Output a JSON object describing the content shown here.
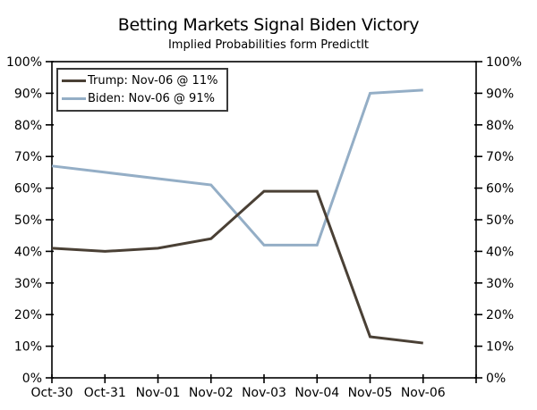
{
  "title": "Betting Markets Signal Biden Victory",
  "subtitle": "Implied Probabilities form PredictIt",
  "colors": {
    "trump_line": "#4A4035",
    "biden_line": "#94AEC6",
    "axis": "#000000",
    "text": "#000000",
    "background": "#FFFFFF",
    "legend_border": "#3A3A3A"
  },
  "legend": {
    "position": "top-left",
    "items": [
      {
        "series": "Trump",
        "label": "Trump: Nov-06 @ 11%"
      },
      {
        "series": "Biden",
        "label": "Biden: Nov-06 @ 91%"
      }
    ]
  },
  "chart_data": {
    "type": "line",
    "title": "Betting Markets Signal Biden Victory",
    "subtitle": "Implied Probabilities form PredictIt",
    "categories": [
      "Oct-30",
      "Oct-31",
      "Nov-01",
      "Nov-02",
      "Nov-03",
      "Nov-04",
      "Nov-05",
      "Nov-06"
    ],
    "series": [
      {
        "name": "Trump",
        "color": "#4A4035",
        "values": [
          41,
          40,
          41,
          44,
          59,
          59,
          13,
          11
        ]
      },
      {
        "name": "Biden",
        "color": "#94AEC6",
        "values": [
          67,
          65,
          63,
          61,
          42,
          42,
          90,
          91
        ]
      }
    ],
    "xlabel": "",
    "ylabel": "",
    "ylim": [
      0,
      100
    ],
    "y_tick_step": 10,
    "y_tick_labels": [
      "0%",
      "10%",
      "20%",
      "30%",
      "40%",
      "50%",
      "60%",
      "70%",
      "80%",
      "90%",
      "100%"
    ],
    "dual_y_axis": true,
    "x_axis_extra_intervals_right": 1,
    "grid": false,
    "legend_position": "top-left"
  }
}
